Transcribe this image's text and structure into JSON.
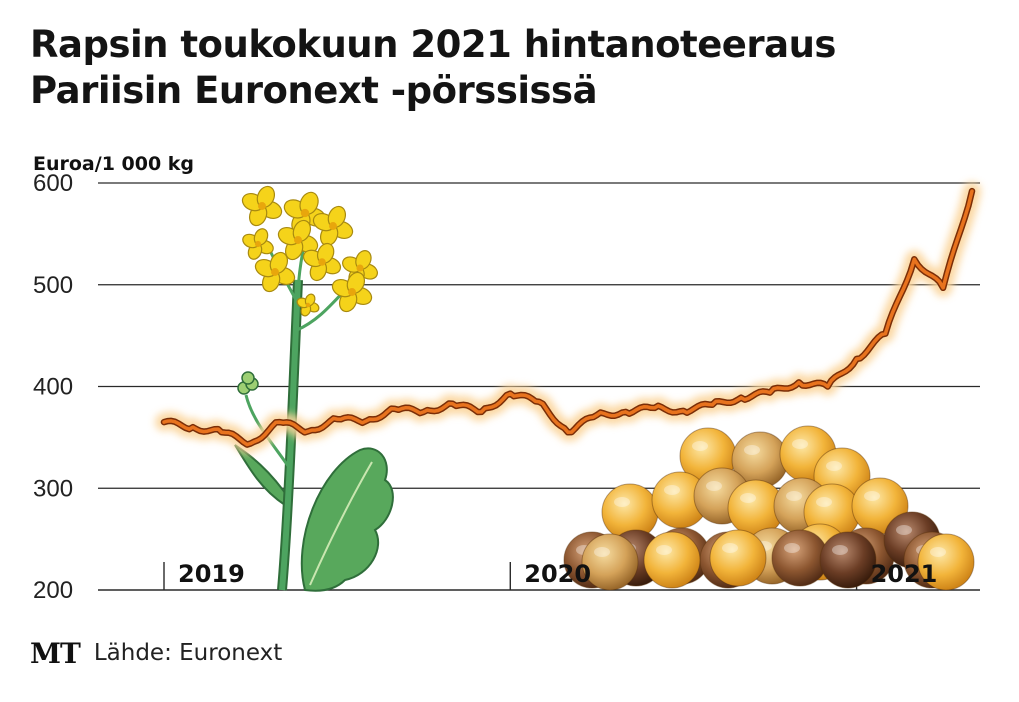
{
  "header": {
    "title_line1": "Rapsin toukokuun 2021 hintanoteeraus",
    "title_line2": "Pariisin Euronext -pörssissä"
  },
  "footer": {
    "logo": "MT",
    "source": "Lähde: Euronext"
  },
  "colors": {
    "line": "#e8731e",
    "line_outline": "#7a2e08",
    "glow": "#fbd49a",
    "grid": "#2a2a2a",
    "flower": "#f5d31a",
    "stem": "#4da460"
  },
  "illustrations": [
    "rapeseed-plant",
    "rapeseed-pile"
  ],
  "chart_data": {
    "type": "line",
    "unit_label": "Euroa/1 000 kg",
    "ylim": [
      200,
      600
    ],
    "yticks": [
      200,
      300,
      400,
      500,
      600
    ],
    "xlim": [
      "2019-01",
      "2021-05"
    ],
    "grid": true,
    "year_labels": [
      {
        "label": "2019",
        "x": "2019-01"
      },
      {
        "label": "2020",
        "x": "2020-01"
      },
      {
        "label": "2021",
        "x": "2021-01"
      }
    ],
    "series": [
      {
        "x": [
          "2019-01",
          "2019-02",
          "2019-03",
          "2019-04",
          "2019-05",
          "2019-06",
          "2019-07",
          "2019-08",
          "2019-09",
          "2019-10",
          "2019-11",
          "2019-12",
          "2020-01",
          "2020-02",
          "2020-03",
          "2020-04",
          "2020-05",
          "2020-06",
          "2020-07",
          "2020-08",
          "2020-09",
          "2020-10",
          "2020-11",
          "2020-12",
          "2021-01",
          "2021-02",
          "2021-03",
          "2021-04",
          "2021-05"
        ],
        "values": [
          365,
          360,
          355,
          344,
          365,
          356,
          368,
          366,
          378,
          375,
          383,
          375,
          393,
          385,
          355,
          372,
          375,
          379,
          376,
          382,
          389,
          394,
          404,
          400,
          427,
          452,
          525,
          497,
          592
        ]
      }
    ]
  }
}
